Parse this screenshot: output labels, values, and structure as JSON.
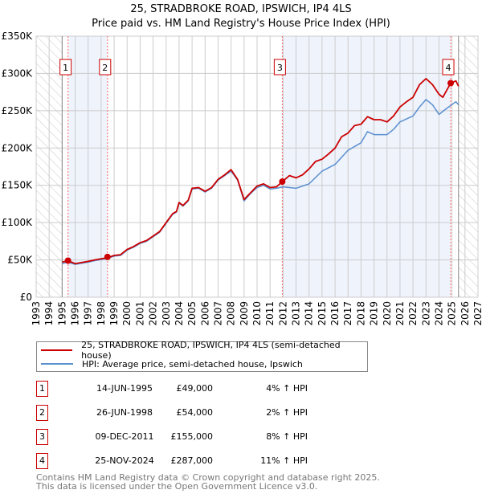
{
  "title": "25, STRADBROKE ROAD, IPSWICH, IP4 4LS",
  "subtitle": "Price paid vs. HM Land Registry's House Price Index (HPI)",
  "colors": {
    "price": "#cc0000",
    "hpi": "#5b8fd0",
    "shade": "#eef3fc",
    "grid": "#cccccc"
  },
  "chart_data": {
    "type": "line",
    "title": "25, STRADBROKE ROAD, IPSWICH, IP4 4LS — Price paid vs. HM Land Registry's House Price Index (HPI)",
    "xlim": [
      1993,
      2027
    ],
    "ylim": [
      0,
      350000
    ],
    "x_ticks": [
      "1993",
      "1994",
      "1995",
      "1996",
      "1997",
      "1998",
      "1999",
      "2000",
      "2001",
      "2002",
      "2003",
      "2004",
      "2005",
      "2006",
      "2007",
      "2008",
      "2009",
      "2010",
      "2011",
      "2012",
      "2013",
      "2014",
      "2015",
      "2016",
      "2017",
      "2018",
      "2019",
      "2020",
      "2021",
      "2022",
      "2023",
      "2024",
      "2025",
      "2026",
      "2027"
    ],
    "y_ticks": [
      {
        "v": 0,
        "label": "£0"
      },
      {
        "v": 50000,
        "label": "£50K"
      },
      {
        "v": 100000,
        "label": "£100K"
      },
      {
        "v": 150000,
        "label": "£150K"
      },
      {
        "v": 200000,
        "label": "£200K"
      },
      {
        "v": 250000,
        "label": "£250K"
      },
      {
        "v": 300000,
        "label": "£300K"
      },
      {
        "v": 350000,
        "label": "£350K"
      }
    ],
    "grid": true,
    "data_range": [
      1995.0,
      2025.5
    ],
    "series": [
      {
        "name": "25, STRADBROKE ROAD, IPSWICH, IP4 4LS (semi-detached house)",
        "color": "#cc0000",
        "x": [
          1995.0,
          1995.45,
          1996,
          1997,
          1997.5,
          1998.5,
          1999,
          1999.5,
          2000,
          2000.5,
          2001,
          2001.5,
          2002,
          2002.5,
          2003,
          2003.5,
          2003.8,
          2004,
          2004.3,
          2004.7,
          2005,
          2005.5,
          2006,
          2006.5,
          2007,
          2007.5,
          2008,
          2008.5,
          2009,
          2009.5,
          2010,
          2010.5,
          2011,
          2011.5,
          2011.94,
          2012.5,
          2013,
          2013.5,
          2014,
          2014.5,
          2015,
          2015.5,
          2016,
          2016.5,
          2017,
          2017.5,
          2018,
          2018.5,
          2019,
          2019.5,
          2020,
          2020.5,
          2021,
          2021.5,
          2022,
          2022.5,
          2023,
          2023.5,
          2024,
          2024.3,
          2024.9,
          2025.3,
          2025.5
        ],
        "y": [
          47000,
          49000,
          45000,
          48000,
          50000,
          53000,
          56000,
          57000,
          64000,
          68000,
          73000,
          76000,
          82000,
          88000,
          100000,
          112000,
          115000,
          127000,
          123000,
          130000,
          146000,
          147000,
          142000,
          147000,
          158000,
          164000,
          171000,
          158000,
          131000,
          140000,
          149000,
          152000,
          147000,
          148000,
          155000,
          163000,
          160000,
          164000,
          172000,
          182000,
          185000,
          192000,
          200000,
          215000,
          220000,
          230000,
          232000,
          242000,
          238000,
          238000,
          235000,
          243000,
          255000,
          262000,
          268000,
          285000,
          293000,
          285000,
          272000,
          268000,
          287000,
          290000,
          283000
        ]
      },
      {
        "name": "HPI: Average price, semi-detached house, Ipswich",
        "color": "#5b8fd0",
        "x": [
          1995.0,
          1995.45,
          1996,
          1997,
          1997.5,
          1998.5,
          1999,
          1999.5,
          2000,
          2000.5,
          2001,
          2001.5,
          2002,
          2002.5,
          2003,
          2003.5,
          2003.8,
          2004,
          2004.3,
          2004.7,
          2005,
          2005.5,
          2006,
          2006.5,
          2007,
          2007.5,
          2008,
          2008.5,
          2009,
          2009.5,
          2010,
          2010.5,
          2011,
          2011.5,
          2012,
          2013,
          2014,
          2015,
          2016,
          2017,
          2018,
          2018.5,
          2019,
          2020,
          2020.5,
          2021,
          2022,
          2022.5,
          2023,
          2023.5,
          2024,
          2024.5,
          2025.3,
          2025.5
        ],
        "y": [
          45000,
          47000,
          44000,
          47000,
          49000,
          52000,
          55000,
          56000,
          63000,
          67000,
          72000,
          75000,
          81000,
          87000,
          99000,
          111000,
          114000,
          126000,
          122000,
          129000,
          145000,
          146000,
          141000,
          146000,
          157000,
          163000,
          169000,
          157000,
          129000,
          139000,
          147000,
          150000,
          145000,
          146000,
          148000,
          146000,
          152000,
          169000,
          178000,
          197000,
          207000,
          222000,
          218000,
          218000,
          225000,
          235000,
          243000,
          255000,
          265000,
          258000,
          245000,
          252000,
          262000,
          258000
        ]
      }
    ],
    "shaded_periods": [
      [
        1995.45,
        1998.49
      ],
      [
        2011.94,
        2024.9
      ]
    ],
    "annotations": [
      {
        "label": "1",
        "x": 1995.45,
        "y": 49000
      },
      {
        "label": "2",
        "x": 1998.49,
        "y": 54000
      },
      {
        "label": "3",
        "x": 2011.94,
        "y": 155000
      },
      {
        "label": "4",
        "x": 2024.9,
        "y": 287000
      }
    ]
  },
  "legend": [
    {
      "label": "25, STRADBROKE ROAD, IPSWICH, IP4 4LS (semi-detached house)"
    },
    {
      "label": "HPI: Average price, semi-detached house, Ipswich"
    }
  ],
  "transactions": [
    {
      "num": "1",
      "date": "14-JUN-1995",
      "price": "£49,000",
      "hpi": "4% ↑ HPI"
    },
    {
      "num": "2",
      "date": "26-JUN-1998",
      "price": "£54,000",
      "hpi": "2% ↑ HPI"
    },
    {
      "num": "3",
      "date": "09-DEC-2011",
      "price": "£155,000",
      "hpi": "8% ↑ HPI"
    },
    {
      "num": "4",
      "date": "25-NOV-2024",
      "price": "£287,000",
      "hpi": "11% ↑ HPI"
    }
  ],
  "footer": {
    "line1": "Contains HM Land Registry data © Crown copyright and database right 2025.",
    "line2": "This data is licensed under the Open Government Licence v3.0."
  }
}
